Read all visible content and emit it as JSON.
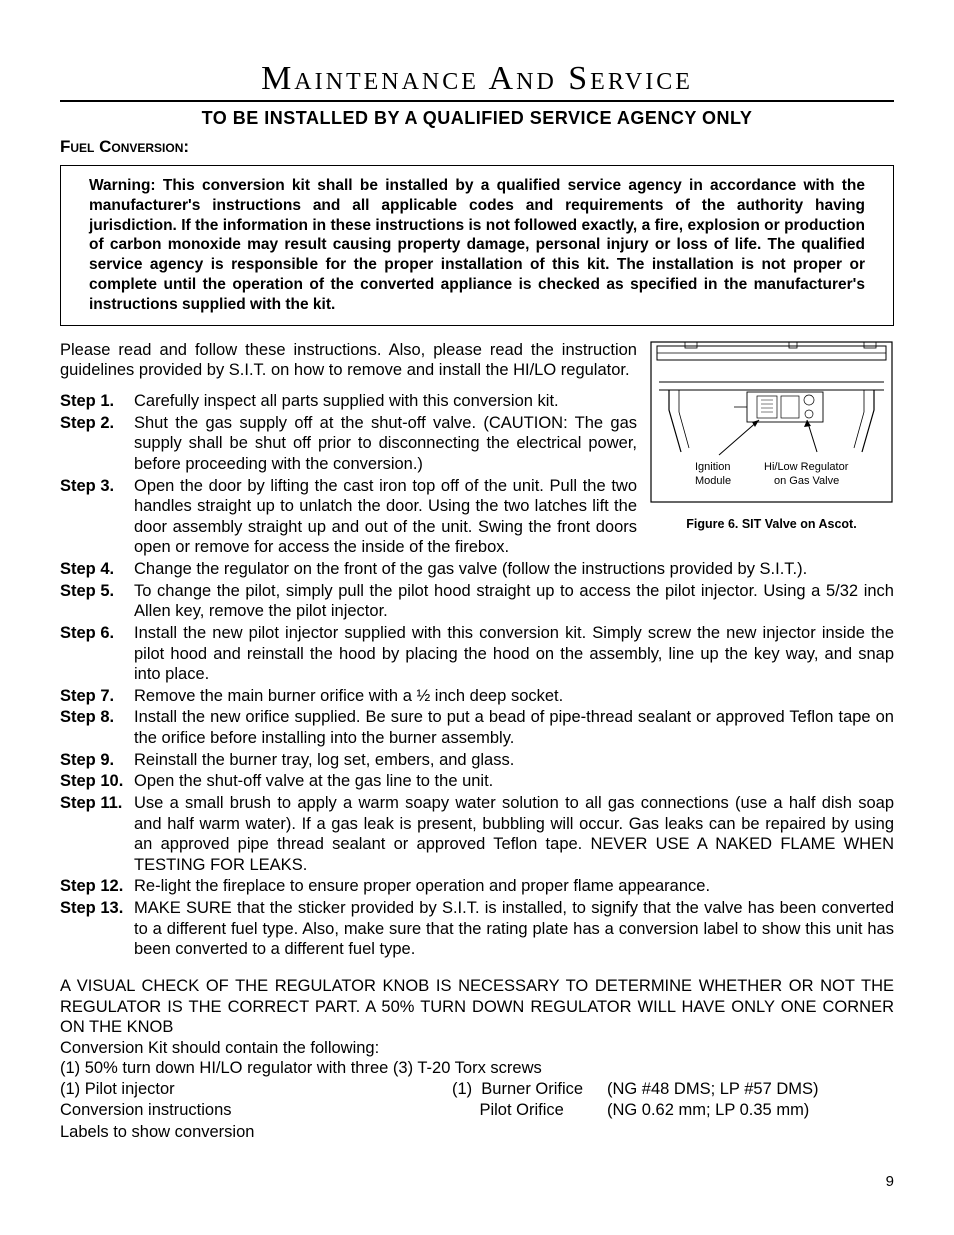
{
  "title": "Maintenance And Service",
  "subtitle": "TO BE INSTALLED BY A QUALIFIED SERVICE AGENCY ONLY",
  "section_head": "Fuel Conversion:",
  "warning": "Warning:  This conversion kit shall be installed by a qualified service agency in accordance with the manufacturer's instructions and all applicable codes and requirements of the authority having jurisdiction. If the information in these instructions is not followed exactly, a fire, explosion or production of carbon monoxide may result causing property damage, personal injury or loss of life. The qualified service agency is responsible for the proper installation of this kit. The installation is not proper or complete until the operation of the converted appliance is checked as specified in the manufacturer's instructions supplied with the kit.",
  "intro": "Please read and follow these instructions. Also, please read the instruction guidelines provided by S.I.T. on how to remove and install the HI/LO regulator.",
  "figure": {
    "label_left_1": "Ignition",
    "label_left_2": "Module",
    "label_right_1": "Hi/Low Regulator",
    "label_right_2": "on Gas Valve",
    "caption": "Figure 6.  SIT Valve on Ascot."
  },
  "steps": [
    {
      "label": "Step 1.",
      "text": "Carefully inspect all parts supplied with this conversion kit."
    },
    {
      "label": "Step 2.",
      "text": "Shut the gas supply off at the shut-off valve. (CAUTION: The gas supply shall be shut off prior to disconnecting the electrical power, before proceeding with the conversion.)"
    },
    {
      "label": "Step 3.",
      "text": "Open the door by lifting the cast iron top off of the unit. Pull the two handles straight up to unlatch the door. Using the two latches lift the door assembly straight up and out of the unit. Swing the front doors open or remove for access the inside of the firebox."
    },
    {
      "label": "Step 4.",
      "text": "Change the regulator on the front of the gas valve (follow the instructions provided by S.I.T.)."
    },
    {
      "label": "Step 5.",
      "text": "To change the pilot, simply pull the pilot hood straight up to access the pilot injector. Using a 5/32 inch Allen key, remove the pilot injector."
    },
    {
      "label": "Step 6.",
      "text": "Install the new pilot injector supplied with this conversion kit.  Simply screw the new injector inside the pilot hood and reinstall the hood by placing the hood on the assembly, line up the key way, and snap into place."
    },
    {
      "label": "Step 7.",
      "text": "Remove the main burner orifice with a ½ inch deep socket."
    },
    {
      "label": "Step 8.",
      "text": "Install the new orifice supplied. Be sure to put a bead of pipe-thread sealant or approved Teflon tape on the orifice before installing into the burner assembly."
    },
    {
      "label": "Step 9.",
      "text": "Reinstall the burner tray, log set, embers, and glass."
    },
    {
      "label": "Step 10.",
      "text": "Open the shut-off valve at the gas line to the unit."
    },
    {
      "label": "Step 11.",
      "text": "Use a small brush to apply a warm soapy water solution to all gas connections (use a half dish soap and half warm water). If a gas leak is present, bubbling will occur. Gas leaks can be repaired by using an approved pipe thread sealant or approved Teflon tape. NEVER USE A NAKED FLAME WHEN TESTING FOR LEAKS."
    },
    {
      "label": "Step 12.",
      "text": "Re-light the fireplace to ensure proper operation and proper flame appearance."
    },
    {
      "label": "Step 13.",
      "text": "MAKE SURE that the sticker provided by S.I.T. is installed, to signify that the valve has been converted to a different fuel type.  Also, make sure that the rating plate has a conversion label to show this unit has been converted to a different fuel type."
    }
  ],
  "closing_caps": "A VISUAL CHECK OF THE REGULATOR KNOB IS NECESSARY TO DETERMINE WHETHER OR NOT THE REGULATOR IS THE CORRECT PART. A 50% TURN DOWN REGULATOR WILL HAVE ONLY ONE CORNER ON THE KNOB",
  "kit_intro": "Conversion Kit should contain the following:",
  "kit_line": "(1) 50% turn down HI/LO regulator with three (3) T-20 Torx screws",
  "kit_left": [
    "(1) Pilot injector",
    "Conversion instructions",
    "Labels to show conversion"
  ],
  "kit_right_a": [
    "(1)  Burner Orifice",
    "      Pilot Orifice"
  ],
  "kit_right_b": [
    "(NG #48 DMS; LP #57 DMS)",
    "(NG 0.62 mm; LP  0.35 mm)"
  ],
  "page_number": "9"
}
